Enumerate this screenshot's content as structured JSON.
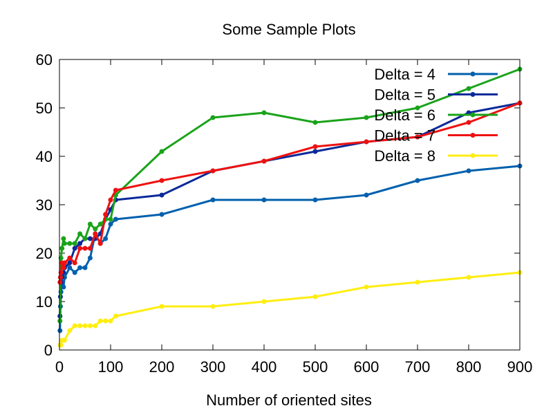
{
  "chart_data": {
    "type": "line",
    "title": "Some Sample Plots",
    "xlabel": "Number of oriented sites",
    "ylabel": "",
    "xlim": [
      0,
      900
    ],
    "ylim": [
      0,
      60
    ],
    "xticks": [
      0,
      100,
      200,
      300,
      400,
      500,
      600,
      700,
      800,
      900
    ],
    "yticks": [
      0,
      10,
      20,
      30,
      40,
      50,
      60
    ],
    "grid": false,
    "legend_position": "top-right",
    "series": [
      {
        "name": "Delta = 4",
        "color": "#0060ad",
        "x": [
          1,
          2,
          3,
          5,
          8,
          10,
          20,
          30,
          40,
          50,
          60,
          70,
          80,
          90,
          100,
          110,
          200,
          300,
          400,
          500,
          600,
          700,
          800,
          900
        ],
        "y": [
          4,
          9,
          12,
          14,
          13,
          15,
          17,
          16,
          17,
          17,
          19,
          24,
          22,
          23,
          26,
          27,
          28,
          31,
          31,
          31,
          32,
          35,
          37,
          38
        ]
      },
      {
        "name": "Delta = 5",
        "color": "#0a2a9a",
        "x": [
          1,
          2,
          3,
          5,
          8,
          10,
          20,
          30,
          40,
          50,
          60,
          70,
          80,
          90,
          100,
          110,
          200,
          300,
          400,
          500,
          600,
          700,
          800,
          900
        ],
        "y": [
          7,
          11,
          14,
          15,
          16,
          17,
          18,
          21,
          22,
          23,
          23,
          23,
          24,
          27,
          29,
          31,
          32,
          37,
          39,
          41,
          43,
          44,
          49,
          51
        ]
      },
      {
        "name": "Delta = 6",
        "color": "#1aa31a",
        "x": [
          1,
          2,
          3,
          5,
          8,
          10,
          20,
          30,
          40,
          50,
          60,
          70,
          80,
          90,
          100,
          110,
          200,
          300,
          400,
          500,
          600,
          700,
          800,
          900
        ],
        "y": [
          6,
          15,
          19,
          21,
          23,
          22,
          22,
          22,
          24,
          23,
          26,
          25,
          26,
          27,
          27,
          32,
          41,
          48,
          49,
          47,
          48,
          50,
          54,
          58
        ]
      },
      {
        "name": "Delta = 7",
        "color": "#ee1111",
        "x": [
          1,
          2,
          3,
          5,
          8,
          10,
          20,
          30,
          40,
          50,
          60,
          70,
          80,
          90,
          100,
          110,
          200,
          300,
          400,
          500,
          600,
          700,
          800,
          900
        ],
        "y": [
          14,
          15,
          16,
          18,
          17,
          18,
          19,
          18,
          21,
          21,
          21,
          24,
          22,
          28,
          31,
          33,
          35,
          37,
          39,
          42,
          43,
          44,
          47,
          51
        ]
      },
      {
        "name": "Delta = 8",
        "color": "#ffee11",
        "x": [
          1,
          2,
          3,
          5,
          8,
          10,
          20,
          30,
          40,
          50,
          60,
          70,
          80,
          90,
          100,
          110,
          200,
          300,
          400,
          500,
          600,
          700,
          800,
          900
        ],
        "y": [
          1,
          1,
          1,
          2,
          2,
          2,
          4,
          5,
          5,
          5,
          5,
          5,
          6,
          6,
          6,
          7,
          9,
          9,
          10,
          11,
          13,
          14,
          15,
          16
        ]
      }
    ]
  }
}
